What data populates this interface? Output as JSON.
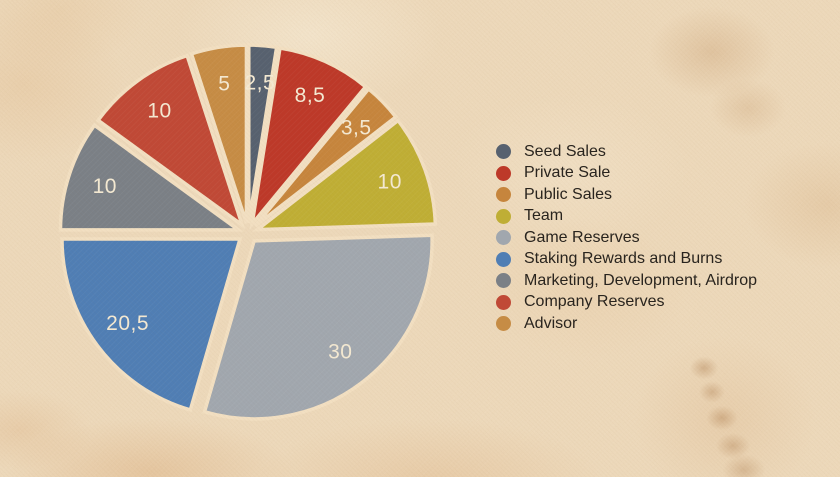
{
  "chart_data": {
    "type": "pie",
    "title": "",
    "total": 100,
    "start_angle_deg": 0,
    "direction": "clockwise",
    "legend_position": "right",
    "background_color": "#f1ddbf",
    "gap_color": "#f2dfc1",
    "value_label_color": "#f4e9d2",
    "legend_text_color": "#29241e",
    "slices": [
      {
        "label": "Seed Sales",
        "value": 2.5,
        "value_label": "2,5",
        "color": "#57616f"
      },
      {
        "label": "Private Sale",
        "value": 8.5,
        "value_label": "8,5",
        "color": "#bd3929"
      },
      {
        "label": "Public Sales",
        "value": 3.5,
        "value_label": "3,5",
        "color": "#c6853d"
      },
      {
        "label": "Team",
        "value": 10,
        "value_label": "10",
        "color": "#bfae35"
      },
      {
        "label": "Game Reserves",
        "value": 30,
        "value_label": "30",
        "color": "#a1a7ae"
      },
      {
        "label": "Staking Rewards and Burns",
        "value": 20.5,
        "value_label": "20,5",
        "color": "#507eb4"
      },
      {
        "label": "Marketing, Development, Airdrop",
        "value": 10,
        "value_label": "10",
        "color": "#7b8086"
      },
      {
        "label": "Company Reserves",
        "value": 10,
        "value_label": "10",
        "color": "#c04936"
      },
      {
        "label": "Advisor",
        "value": 5,
        "value_label": "5",
        "color": "#c68c45"
      }
    ]
  }
}
